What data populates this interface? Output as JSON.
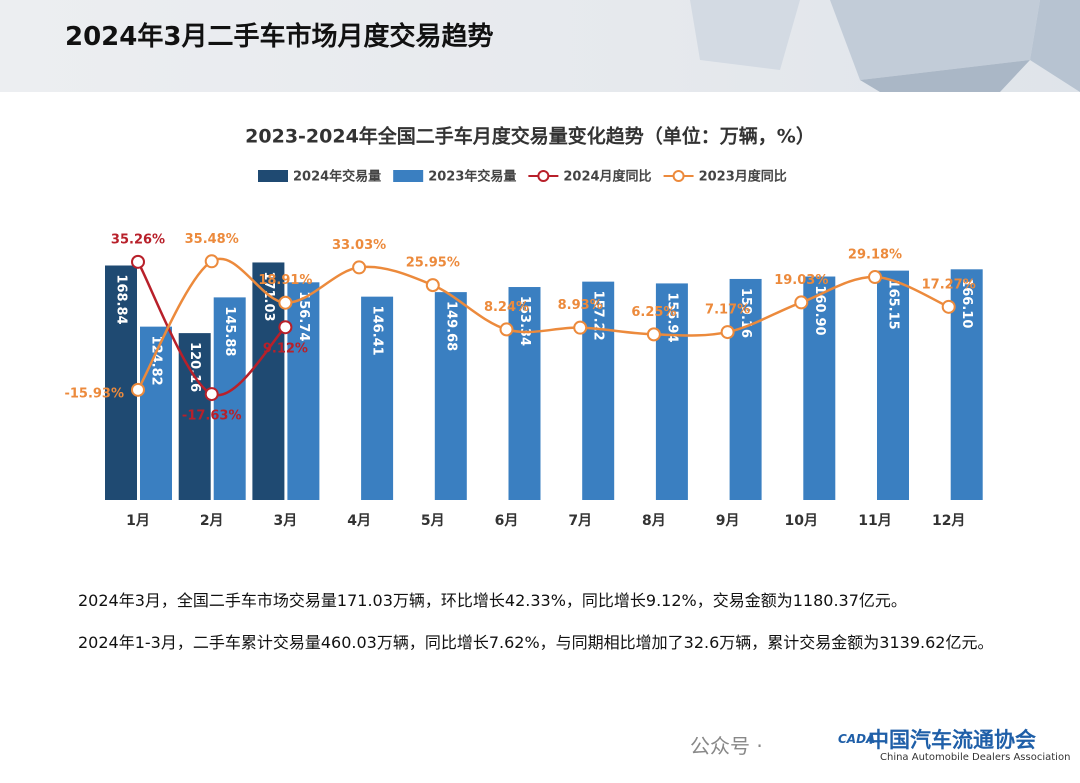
{
  "header": {
    "title": "2024年3月二手车市场月度交易趋势"
  },
  "chart_data": {
    "type": "bar",
    "title": "2023-2024年全国二手车月度交易量变化趋势（单位：万辆，%）",
    "categories": [
      "1月",
      "2月",
      "3月",
      "4月",
      "5月",
      "6月",
      "7月",
      "8月",
      "9月",
      "10月",
      "11月",
      "12月"
    ],
    "ylim": [
      0,
      180
    ],
    "y2lim": [
      -60,
      40
    ],
    "series": [
      {
        "name": "2024年交易量",
        "type": "bar",
        "color": "#1f4a72",
        "values": [
          168.84,
          120.16,
          171.03,
          null,
          null,
          null,
          null,
          null,
          null,
          null,
          null,
          null
        ]
      },
      {
        "name": "2023年交易量",
        "type": "bar",
        "color": "#3a7fc1",
        "values": [
          124.82,
          145.88,
          156.74,
          146.41,
          149.68,
          153.34,
          157.22,
          155.94,
          159.16,
          160.9,
          165.15,
          166.1
        ],
        "value_labels": [
          "124.82",
          "145.88",
          "156.74",
          "146.41",
          "149.68",
          "153.34",
          "157.22",
          "155.94",
          "159.16",
          "160.90",
          "165.15",
          "166.10"
        ]
      },
      {
        "name": "2024月度同比",
        "type": "line",
        "axis": "y2",
        "color": "#b8202a",
        "values": [
          35.26,
          -17.63,
          9.12,
          null,
          null,
          null,
          null,
          null,
          null,
          null,
          null,
          null
        ],
        "value_labels": [
          "35.26%",
          "-17.63%",
          "9.12%",
          null,
          null,
          null,
          null,
          null,
          null,
          null,
          null,
          null
        ]
      },
      {
        "name": "2023月度同比",
        "type": "line",
        "axis": "y2",
        "color": "#ec8a3c",
        "values": [
          -15.93,
          35.48,
          18.91,
          33.03,
          25.95,
          8.24,
          8.93,
          6.25,
          7.17,
          19.03,
          29.18,
          17.27
        ],
        "value_labels": [
          "-15.93%",
          "35.48%",
          "18.91%",
          "33.03%",
          "25.95%",
          "8.24%",
          "8.93%",
          "6.25%",
          "7.17%",
          "19.03%",
          "29.18%",
          "17.27%"
        ]
      }
    ]
  },
  "paragraphs": [
    "2024年3月，全国二手车市场交易量171.03万辆，环比增长42.33%，同比增长9.12%，交易金额为1180.37亿元。",
    "2024年1-3月，二手车累计交易量460.03万辆，同比增长7.62%，与同期相比增加了32.6万辆，累计交易金额为3139.62亿元。"
  ],
  "footer": {
    "wechat": "公众号 ·",
    "logo_cn": "中国汽车流通协会",
    "logo_en": "China Automobile Dealers Association",
    "logo_abbr": "CADA"
  }
}
